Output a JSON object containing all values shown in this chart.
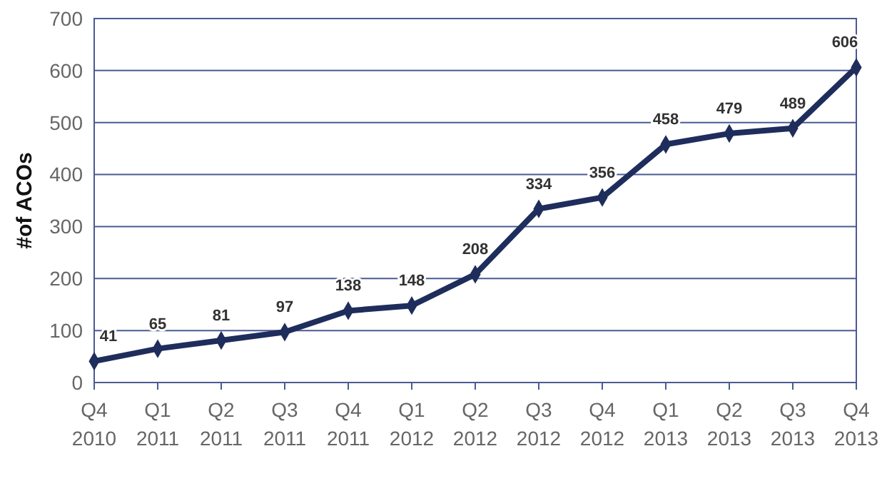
{
  "chart_data": {
    "type": "line",
    "ylabel": "#of ACOs",
    "categories": [
      "Q4 2010",
      "Q1 2011",
      "Q2 2011",
      "Q3 2011",
      "Q4 2011",
      "Q1 2012",
      "Q2 2012",
      "Q3 2012",
      "Q4 2012",
      "Q1 2013",
      "Q2 2013",
      "Q3 2013",
      "Q4 2013"
    ],
    "series": [
      {
        "color": "#1f2d5c",
        "values": [
          41,
          65,
          81,
          97,
          138,
          148,
          208,
          334,
          356,
          458,
          479,
          489,
          606
        ]
      }
    ],
    "ylim": [
      0,
      700
    ],
    "yticks": [
      0,
      100,
      200,
      300,
      400,
      500,
      600,
      700
    ],
    "grid": "y",
    "marker": "diamond",
    "line_style": "solid",
    "data_labels": true
  }
}
